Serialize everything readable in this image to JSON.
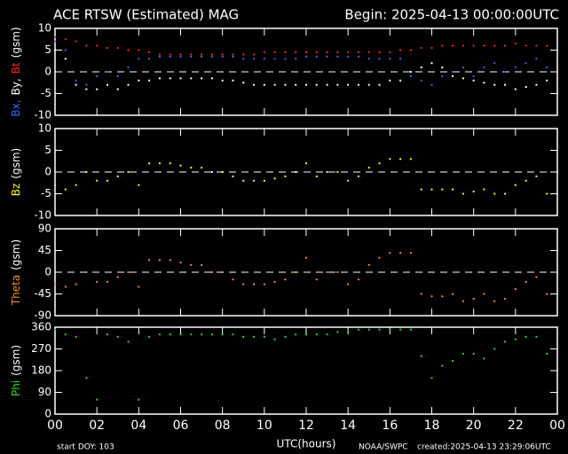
{
  "header": {
    "title": "ACE RTSW (Estimated) MAG",
    "begin": "Begin: 2025-04-13 00:00:00UTC"
  },
  "footer": {
    "start": "start DOY:  103",
    "xlabel": "UTC(hours)",
    "source": "NOAA/SWPC",
    "created": "created:2025-04-13 23:29:06UTC"
  },
  "xlim": [
    0,
    24
  ],
  "xticks": [
    {
      "value": 0,
      "label": "00"
    },
    {
      "value": 2,
      "label": "02"
    },
    {
      "value": 4,
      "label": "04"
    },
    {
      "value": 6,
      "label": "06"
    },
    {
      "value": 8,
      "label": "08"
    },
    10,
    12,
    14,
    16,
    18,
    20,
    22,
    {
      "value": 24,
      "label": "00"
    }
  ],
  "chart_data": [
    {
      "type": "scatter",
      "ylim": [
        -10,
        10
      ],
      "yticks": [
        -10,
        -5,
        0,
        5,
        10
      ],
      "zero_line": true,
      "y_label": [
        {
          "text": "Bx,",
          "color": "#3366ff"
        },
        {
          "text": "By,",
          "color": "#ffffff"
        },
        {
          "text": "Bt",
          "color": "#ff2020"
        },
        {
          "text": "(gsm)",
          "color": "#ffffff"
        }
      ],
      "x": [
        0,
        0.5,
        1,
        1.5,
        2,
        2.5,
        3,
        3.5,
        4,
        4.5,
        5,
        5.5,
        6,
        6.5,
        7,
        7.5,
        8,
        8.5,
        9,
        9.5,
        10,
        10.5,
        11,
        11.5,
        12,
        12.5,
        13,
        13.5,
        14,
        14.5,
        15,
        15.5,
        16,
        16.5,
        17,
        17.5,
        18,
        18.5,
        19,
        19.5,
        20,
        20.5,
        21,
        21.5,
        22,
        22.5,
        23,
        23.5
      ],
      "series": [
        {
          "color": "#ff2020",
          "values": [
            8,
            7.5,
            7,
            6,
            6,
            5.5,
            5.5,
            5,
            5,
            4.5,
            4,
            4,
            4,
            4,
            4,
            4,
            4,
            4,
            4,
            4,
            4.5,
            4.5,
            4.5,
            4.5,
            4.5,
            4.5,
            4.5,
            4.5,
            4.5,
            4.5,
            4.5,
            4.5,
            4.5,
            5,
            5,
            5.5,
            5.5,
            6,
            6,
            6,
            6,
            6,
            6,
            6,
            6.5,
            6,
            6,
            6
          ]
        },
        {
          "color": "#3366ff",
          "values": [
            7,
            5,
            -2,
            -3,
            -1,
            0,
            -1,
            1,
            3,
            3,
            3.5,
            3.5,
            3.5,
            3.5,
            3.5,
            3.5,
            3.5,
            3.5,
            3,
            3,
            3,
            3,
            3,
            3,
            3.5,
            3.5,
            3.5,
            3.5,
            3.5,
            3.5,
            3,
            3,
            3,
            3,
            -1,
            -2,
            -3,
            -1,
            0,
            1,
            -1,
            1,
            2,
            0,
            1,
            2,
            3,
            1
          ]
        },
        {
          "color": "#ffffff",
          "values": [
            5,
            3,
            -3,
            -4,
            -4,
            -3,
            -4,
            -3,
            -2,
            -2,
            -1.5,
            -1.5,
            -1.5,
            -1.5,
            -1.5,
            -1.5,
            -2,
            -2,
            -2.5,
            -3,
            -3,
            -3,
            -3,
            -3,
            -3,
            -3,
            -3,
            -3,
            -3,
            -3,
            -3,
            -3,
            -2,
            -2,
            0,
            1,
            2,
            1,
            -1,
            -1.5,
            -2,
            -2.5,
            -3,
            -3,
            -4,
            -3.5,
            -3,
            -2
          ]
        }
      ]
    },
    {
      "type": "scatter",
      "ylim": [
        -10,
        10
      ],
      "yticks": [
        -10,
        -5,
        0,
        5,
        10
      ],
      "zero_line": true,
      "y_label": [
        {
          "text": "Bz",
          "color": "#ffff00"
        },
        {
          "text": "(gsm)",
          "color": "#ffffff"
        }
      ],
      "x": [
        0,
        0.5,
        1,
        1.5,
        2,
        2.5,
        3,
        3.5,
        4,
        4.5,
        5,
        5.5,
        6,
        6.5,
        7,
        7.5,
        8,
        8.5,
        9,
        9.5,
        10,
        10.5,
        11,
        11.5,
        12,
        12.5,
        13,
        13.5,
        14,
        14.5,
        15,
        15.5,
        16,
        16.5,
        17,
        17.5,
        18,
        18.5,
        19,
        19.5,
        20,
        20.5,
        21,
        21.5,
        22,
        22.5,
        23,
        23.5
      ],
      "series": [
        {
          "color": "#ffff00",
          "values": [
            -3,
            -4,
            -3,
            0,
            -2,
            -2,
            -1,
            0,
            -3,
            2,
            2,
            2,
            1.5,
            1,
            1,
            0,
            0,
            -1,
            -2,
            -2,
            -2,
            -1.5,
            -1,
            0,
            2,
            -1,
            0,
            0,
            -2,
            -1,
            1,
            2,
            3,
            3,
            3,
            -4,
            -4,
            -4,
            -4,
            -5,
            -4.5,
            -4,
            -5,
            -5,
            -3,
            -2,
            -1,
            -5
          ]
        }
      ]
    },
    {
      "type": "scatter",
      "ylim": [
        -90,
        90
      ],
      "yticks": [
        -90,
        -45,
        0,
        45,
        90
      ],
      "zero_line": true,
      "y_label": [
        {
          "text": "Theta",
          "color": "#ff8c1a"
        },
        {
          "text": "(gsm)",
          "color": "#ffffff"
        }
      ],
      "x": [
        0,
        0.5,
        1,
        1.5,
        2,
        2.5,
        3,
        3.5,
        4,
        4.5,
        5,
        5.5,
        6,
        6.5,
        7,
        7.5,
        8,
        8.5,
        9,
        9.5,
        10,
        10.5,
        11,
        11.5,
        12,
        12.5,
        13,
        13.5,
        14,
        14.5,
        15,
        15.5,
        16,
        16.5,
        17,
        17.5,
        18,
        18.5,
        19,
        19.5,
        20,
        20.5,
        21,
        21.5,
        22,
        22.5,
        23,
        23.5
      ],
      "series": [
        {
          "color": "#ff8c1a",
          "values": [
            -25,
            -30,
            -25,
            0,
            -20,
            -20,
            -10,
            0,
            -30,
            25,
            25,
            25,
            20,
            15,
            15,
            0,
            0,
            -15,
            -25,
            -25,
            -25,
            -20,
            -15,
            0,
            30,
            -15,
            0,
            0,
            -25,
            -15,
            15,
            30,
            40,
            40,
            40,
            -45,
            -50,
            -50,
            -45,
            -60,
            -55,
            -45,
            -60,
            -55,
            -35,
            -20,
            -10,
            -45
          ]
        }
      ]
    },
    {
      "type": "scatter",
      "ylim": [
        0,
        360
      ],
      "yticks": [
        0,
        90,
        180,
        270,
        360
      ],
      "zero_line": false,
      "y_label": [
        {
          "text": "Phi",
          "color": "#22dd22"
        },
        {
          "text": "(gsm)",
          "color": "#ffffff"
        }
      ],
      "x": [
        0,
        0.5,
        1,
        1.5,
        2,
        2.5,
        3,
        3.5,
        4,
        4.5,
        5,
        5.5,
        6,
        6.5,
        7,
        7.5,
        8,
        8.5,
        9,
        9.5,
        10,
        10.5,
        11,
        11.5,
        12,
        12.5,
        13,
        13.5,
        14,
        14.5,
        15,
        15.5,
        16,
        16.5,
        17,
        17.5,
        18,
        18.5,
        19,
        19.5,
        20,
        20.5,
        21,
        21.5,
        22,
        22.5,
        23,
        23.5
      ],
      "series": [
        {
          "color": "#22dd22",
          "values": [
            350,
            330,
            320,
            150,
            60,
            330,
            320,
            300,
            60,
            320,
            330,
            330,
            330,
            330,
            330,
            330,
            330,
            330,
            320,
            320,
            320,
            310,
            320,
            330,
            330,
            330,
            330,
            340,
            340,
            350,
            350,
            350,
            350,
            350,
            350,
            240,
            150,
            200,
            220,
            250,
            250,
            230,
            270,
            300,
            310,
            320,
            320,
            250
          ]
        }
      ]
    }
  ]
}
